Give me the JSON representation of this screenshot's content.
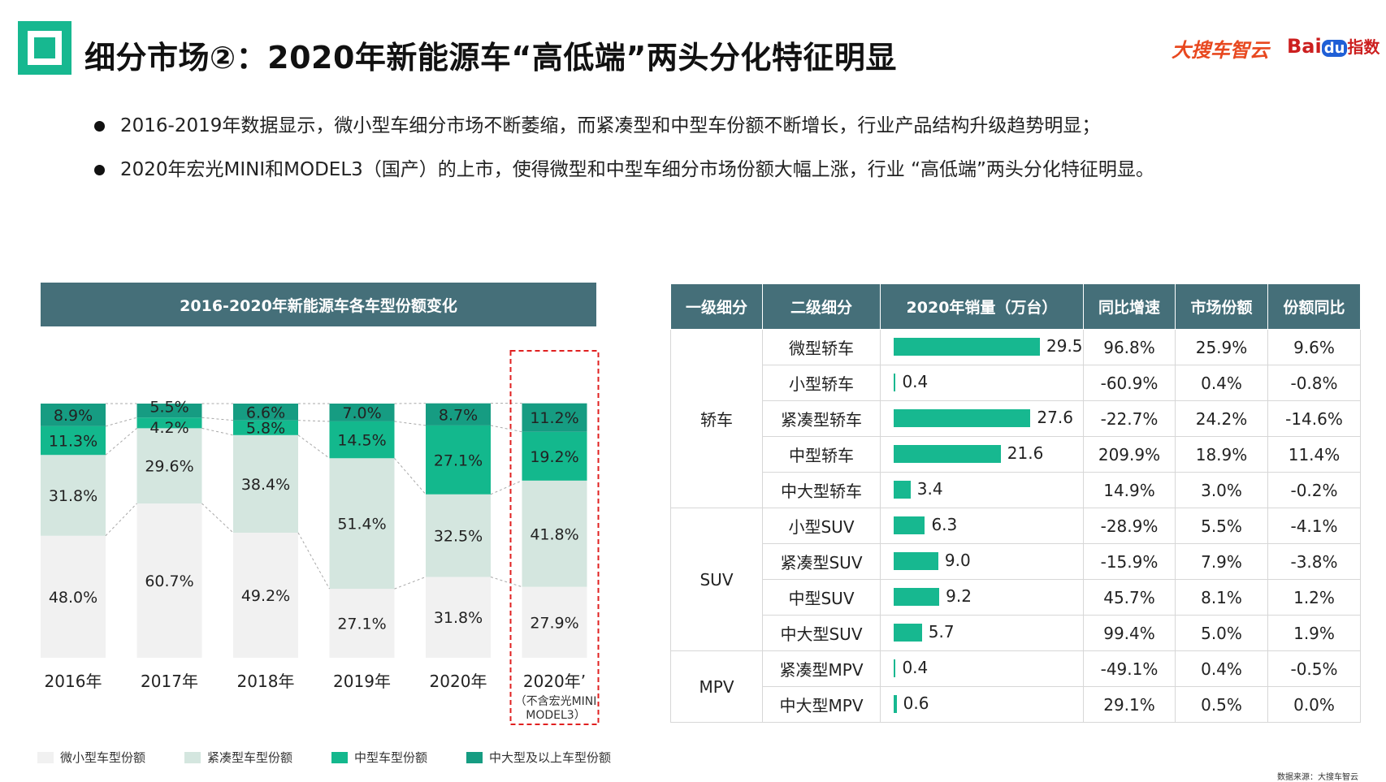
{
  "header": {
    "title": "细分市场②：2020年新能源车“高低端”两头分化特征明显",
    "brand_a": "大搜车智云",
    "brand_b_prefix": "Bai",
    "brand_b_du": "du",
    "brand_b_suffix": "指数"
  },
  "bullets": [
    "2016-2019年数据显示，微小型车细分市场不断萎缩，而紧凑型和中型车份额不断增长，行业产品结构升级趋势明显；",
    "2020年宏光MINI和MODEL3（国产）的上市，使得微型和中型车细分市场份额大幅上涨，行业 “高低端”两头分化特征明显。"
  ],
  "chart_data": {
    "type": "bar",
    "stacked": true,
    "percent": true,
    "title": "2016-2020年新能源车各车型份额变化",
    "categories": [
      "2016年",
      "2017年",
      "2018年",
      "2019年",
      "2020年",
      "2020年’"
    ],
    "series": [
      {
        "name": "微小型车型份额",
        "color": "#f1f1f1",
        "values": [
          48.0,
          60.7,
          49.2,
          27.1,
          31.8,
          27.9
        ],
        "labels": [
          "48.0%",
          "60.7%",
          "49.2%",
          "27.1%",
          "31.8%",
          "27.9%"
        ]
      },
      {
        "name": "紧凑型车型份额",
        "color": "#d4e6df",
        "values": [
          31.8,
          29.6,
          38.4,
          51.4,
          32.5,
          41.8
        ],
        "labels": [
          "31.8%",
          "29.6%",
          "38.4%",
          "51.4%",
          "32.5%",
          "41.8%"
        ]
      },
      {
        "name": "中型车型份额",
        "color": "#13b88d",
        "values": [
          11.3,
          4.2,
          5.8,
          14.5,
          27.1,
          19.2
        ],
        "labels": [
          "11.3%",
          "4.2%",
          "5.8%",
          "14.5%",
          "27.1%",
          "19.2%"
        ]
      },
      {
        "name": "中大型及以上车型份额",
        "color": "#169c82",
        "values": [
          8.9,
          5.5,
          6.6,
          7.0,
          8.7,
          11.2
        ],
        "labels": [
          "8.9%",
          "5.5%",
          "6.6%",
          "7.0%",
          "8.7%",
          "11.2%"
        ]
      }
    ],
    "highlight_category": "2020年’",
    "note": "（不含宏光MINI MODEL3）",
    "ylim": [
      0,
      100
    ]
  },
  "table": {
    "headers": [
      "一级细分",
      "二级细分",
      "2020年销量（万台）",
      "同比增速",
      "市场份额",
      "份额同比"
    ],
    "groups": [
      {
        "name": "轿车",
        "rows": [
          {
            "sub": "微型轿车",
            "sales": 29.5,
            "sales_label": "29.5",
            "yoy": "96.8%",
            "share": "25.9%",
            "share_yoy": "9.6%"
          },
          {
            "sub": "小型轿车",
            "sales": 0.4,
            "sales_label": "0.4",
            "yoy": "-60.9%",
            "share": "0.4%",
            "share_yoy": "-0.8%"
          },
          {
            "sub": "紧凑型轿车",
            "sales": 27.6,
            "sales_label": "27.6",
            "yoy": "-22.7%",
            "share": "24.2%",
            "share_yoy": "-14.6%"
          },
          {
            "sub": "中型轿车",
            "sales": 21.6,
            "sales_label": "21.6",
            "yoy": "209.9%",
            "share": "18.9%",
            "share_yoy": "11.4%"
          },
          {
            "sub": "中大型轿车",
            "sales": 3.4,
            "sales_label": "3.4",
            "yoy": "14.9%",
            "share": "3.0%",
            "share_yoy": "-0.2%"
          }
        ]
      },
      {
        "name": "SUV",
        "rows": [
          {
            "sub": "小型SUV",
            "sales": 6.3,
            "sales_label": "6.3",
            "yoy": "-28.9%",
            "share": "5.5%",
            "share_yoy": "-4.1%"
          },
          {
            "sub": "紧凑型SUV",
            "sales": 9.0,
            "sales_label": "9.0",
            "yoy": "-15.9%",
            "share": "7.9%",
            "share_yoy": "-3.8%"
          },
          {
            "sub": "中型SUV",
            "sales": 9.2,
            "sales_label": "9.2",
            "yoy": "45.7%",
            "share": "8.1%",
            "share_yoy": "1.2%"
          },
          {
            "sub": "中大型SUV",
            "sales": 5.7,
            "sales_label": "5.7",
            "yoy": "99.4%",
            "share": "5.0%",
            "share_yoy": "1.9%"
          }
        ]
      },
      {
        "name": "MPV",
        "rows": [
          {
            "sub": "紧凑型MPV",
            "sales": 0.4,
            "sales_label": "0.4",
            "yoy": "-49.1%",
            "share": "0.4%",
            "share_yoy": "-0.5%"
          },
          {
            "sub": "中大型MPV",
            "sales": 0.6,
            "sales_label": "0.6",
            "yoy": "29.1%",
            "share": "0.5%",
            "share_yoy": "0.0%"
          }
        ]
      }
    ]
  },
  "source": "数据来源：大搜车智云"
}
